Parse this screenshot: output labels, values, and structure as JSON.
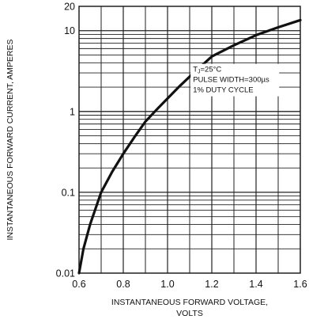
{
  "chart_data": {
    "type": "line",
    "title": "",
    "xlabel_line1": "INSTANTANEOUS FORWARD VOLTAGE,",
    "xlabel_line2": "VOLTS",
    "ylabel": "INSTANTANEOUS FORWARD CURRENT, AMPERES",
    "xlim": [
      0.6,
      1.6
    ],
    "ylim": [
      0.01,
      20
    ],
    "yscale": "log",
    "grid": true,
    "x_ticks": [
      {
        "value": 0.6,
        "label": "0.6"
      },
      {
        "value": 0.8,
        "label": "0.8"
      },
      {
        "value": 1.0,
        "label": "1.0"
      },
      {
        "value": 1.2,
        "label": "1.2"
      },
      {
        "value": 1.4,
        "label": "1.4"
      },
      {
        "value": 1.6,
        "label": "1.6"
      }
    ],
    "y_ticks": [
      {
        "value": 0.01,
        "label": "0.01"
      },
      {
        "value": 0.1,
        "label": "0.1"
      },
      {
        "value": 1,
        "label": "1"
      },
      {
        "value": 10,
        "label": "10"
      },
      {
        "value": 20,
        "label": "20"
      }
    ],
    "annotation": {
      "line1_main": "T",
      "line1_sub": "J",
      "line1_rest": "=25°C",
      "line2": "PULSE WIDTH=300µs",
      "line3": "1% DUTY CYCLE"
    },
    "series": [
      {
        "x": [
          0.6,
          0.62,
          0.65,
          0.7,
          0.75,
          0.8,
          0.85,
          0.9,
          0.95,
          1.0,
          1.05,
          1.1,
          1.15,
          1.2,
          1.3,
          1.4,
          1.5,
          1.6
        ],
        "y": [
          0.01,
          0.02,
          0.04,
          0.1,
          0.18,
          0.3,
          0.48,
          0.75,
          1.05,
          1.45,
          2.0,
          2.7,
          3.6,
          4.8,
          6.6,
          8.8,
          11.0,
          13.5
        ]
      }
    ]
  }
}
